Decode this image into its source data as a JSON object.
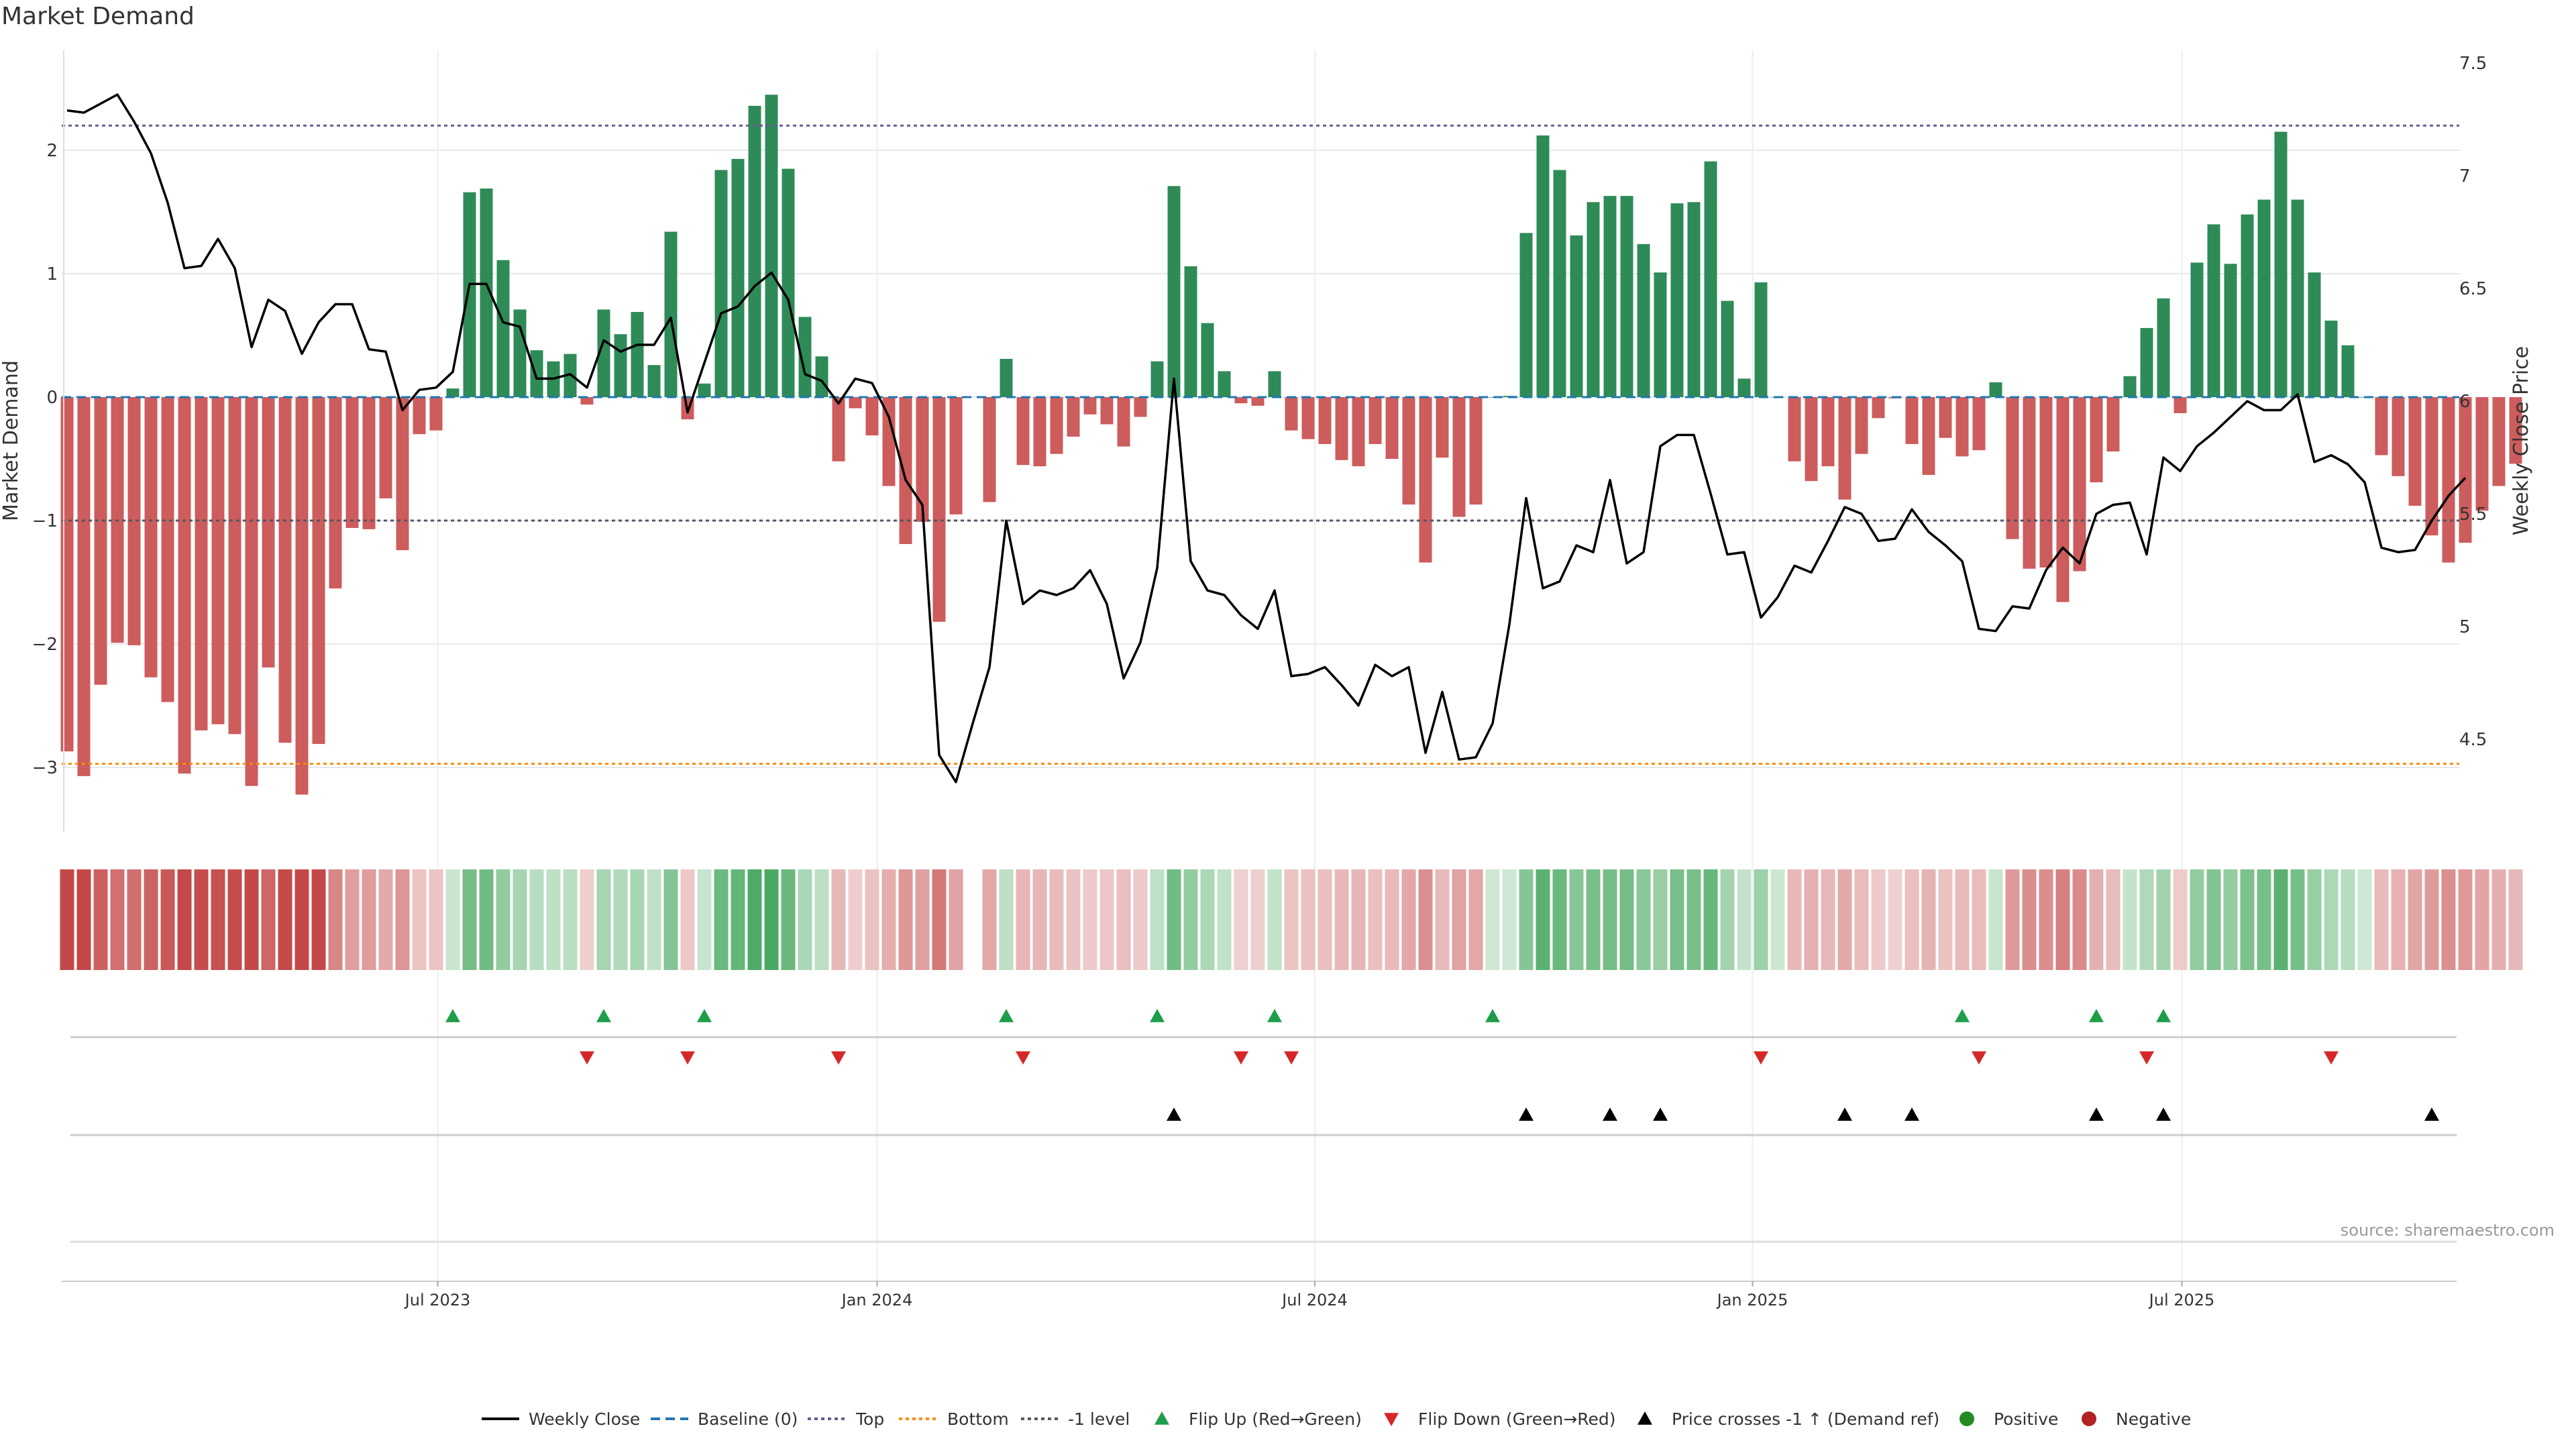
{
  "title": "Market Demand",
  "source": "source: sharemaestro.com",
  "colors": {
    "positive": "#2e8b57",
    "negative": "#cd5c5c",
    "price": "#000000",
    "baseline": "#1f77b4",
    "top": "#6b5b95",
    "bottom": "#ff8c00",
    "minus1": "#555566",
    "flip_up": "#1e9e4a",
    "flip_down": "#d62728",
    "cross": "#000000",
    "grid": "#e8e8e8",
    "legend_positive": "#228b22",
    "legend_negative": "#b22222"
  },
  "chart_data": {
    "type": "bar+line",
    "title": "Market Demand",
    "ylabel_left": "Market Demand",
    "ylabel_right": "Weekly Close Price",
    "ylim_left": [
      -3.5,
      2.75
    ],
    "yticks_left": [
      -3,
      -2,
      -1,
      0,
      1,
      2
    ],
    "ytick_labels_left": [
      "−3",
      "−2",
      "−1",
      "0",
      "1",
      "2"
    ],
    "ylim_right": [
      4.05,
      7.55
    ],
    "yticks_right": [
      4.5,
      5,
      5.5,
      6,
      6.5,
      7,
      7.5
    ],
    "ytick_labels_right": [
      "4.5",
      "5",
      "5.5",
      "6",
      "6.5",
      "7",
      "7.5"
    ],
    "x_tick_index": [
      22.1,
      48.3,
      74.4,
      100.5,
      126.1
    ],
    "x_tick_labels": [
      "Jul 2023",
      "Jan 2024",
      "Jul 2024",
      "Jan 2025",
      "Jul 2025"
    ],
    "top_level": 2.2,
    "bottom_level": -2.97,
    "minus1_level": -1,
    "demand": [
      -2.87,
      -3.07,
      -2.33,
      -1.99,
      -2.01,
      -2.27,
      -2.47,
      -3.05,
      -2.7,
      -2.65,
      -2.73,
      -3.15,
      -2.19,
      -2.8,
      -3.22,
      -2.81,
      -1.55,
      -1.06,
      -1.07,
      -0.82,
      -1.24,
      -0.3,
      -0.27,
      0.07,
      1.66,
      1.69,
      1.11,
      0.71,
      0.38,
      0.29,
      0.35,
      -0.06,
      0.71,
      0.51,
      0.69,
      0.26,
      1.34,
      -0.18,
      0.11,
      1.84,
      1.93,
      2.36,
      2.45,
      1.85,
      0.65,
      0.33,
      -0.52,
      -0.09,
      -0.31,
      -0.72,
      -1.19,
      -1.01,
      -1.82,
      -0.95,
      null,
      -0.85,
      0.31,
      -0.55,
      -0.56,
      -0.46,
      -0.32,
      -0.14,
      -0.22,
      -0.4,
      -0.16,
      0.29,
      1.71,
      1.06,
      0.6,
      0.21,
      -0.05,
      -0.07,
      0.21,
      -0.27,
      -0.34,
      -0.38,
      -0.51,
      -0.56,
      -0.38,
      -0.5,
      -0.87,
      -1.34,
      -0.49,
      -0.97,
      -0.87,
      0.0,
      0.01,
      1.33,
      2.12,
      1.84,
      1.31,
      1.58,
      1.63,
      1.63,
      1.24,
      1.01,
      1.57,
      1.58,
      1.91,
      0.78,
      0.15,
      0.93,
      0.0,
      -0.52,
      -0.68,
      -0.56,
      -0.83,
      -0.46,
      -0.17,
      -0.01,
      -0.38,
      -0.63,
      -0.33,
      -0.48,
      -0.43,
      0.12,
      -1.15,
      -1.39,
      -1.38,
      -1.66,
      -1.41,
      -0.69,
      -0.44,
      0.17,
      0.56,
      0.8,
      -0.13,
      1.09,
      1.4,
      1.08,
      1.48,
      1.6,
      2.15,
      1.6,
      1.01,
      0.62,
      0.42,
      0.0,
      -0.47,
      -0.64,
      -0.88,
      -1.12,
      -1.34,
      -1.18,
      -0.92,
      -0.72,
      -0.54
    ],
    "price": [
      7.29,
      7.28,
      7.32,
      7.36,
      7.24,
      7.1,
      6.88,
      6.59,
      6.6,
      6.72,
      6.59,
      6.24,
      6.45,
      6.4,
      6.21,
      6.35,
      6.43,
      6.43,
      6.23,
      6.22,
      5.96,
      6.05,
      6.06,
      6.13,
      6.52,
      6.52,
      6.35,
      6.33,
      6.1,
      6.1,
      6.12,
      6.06,
      6.27,
      6.22,
      6.25,
      6.25,
      6.37,
      5.95,
      6.17,
      6.39,
      6.42,
      6.51,
      6.57,
      6.45,
      6.12,
      6.09,
      5.99,
      6.1,
      6.08,
      5.93,
      5.65,
      5.54,
      4.43,
      4.31,
      4.57,
      4.82,
      5.47,
      5.1,
      5.16,
      5.14,
      5.17,
      5.25,
      5.1,
      4.77,
      4.93,
      5.26,
      6.1,
      5.29,
      5.16,
      5.14,
      5.05,
      4.99,
      5.16,
      4.78,
      4.79,
      4.82,
      4.74,
      4.65,
      4.83,
      4.78,
      4.82,
      4.44,
      4.71,
      4.41,
      4.42,
      4.57,
      5.01,
      5.57,
      5.17,
      5.2,
      5.36,
      5.33,
      5.65,
      5.28,
      5.33,
      5.8,
      5.85,
      5.85,
      5.59,
      5.32,
      5.33,
      5.04,
      5.13,
      5.27,
      5.24,
      5.38,
      5.53,
      5.5,
      5.38,
      5.39,
      5.52,
      5.42,
      5.36,
      5.29,
      4.99,
      4.98,
      5.09,
      5.08,
      5.25,
      5.35,
      5.28,
      5.5,
      5.54,
      5.55,
      5.32,
      5.75,
      5.69,
      5.8,
      5.86,
      5.93,
      6.0,
      5.96,
      5.96,
      6.03,
      5.73,
      5.76,
      5.72,
      5.64,
      5.35,
      5.33,
      5.34,
      5.47,
      5.58,
      5.66
    ],
    "flip_up_idx": [
      23,
      32,
      38,
      56,
      65,
      72,
      85,
      113,
      121,
      125
    ],
    "flip_down_idx": [
      31,
      37,
      46,
      57,
      70,
      73,
      101,
      114,
      124,
      135
    ],
    "cross_idx": [
      66,
      87,
      92,
      95,
      106,
      110,
      121,
      125,
      141
    ]
  },
  "legend": {
    "weekly_close": "Weekly Close",
    "baseline": "Baseline (0)",
    "top": "Top",
    "bottom": "Bottom",
    "minus1": "-1 level",
    "flip_up": "Flip Up (Red→Green)",
    "flip_down": "Flip Down (Green→Red)",
    "price_cross": "Price crosses -1 ↑ (Demand ref)",
    "positive": "Positive",
    "negative": "Negative"
  }
}
